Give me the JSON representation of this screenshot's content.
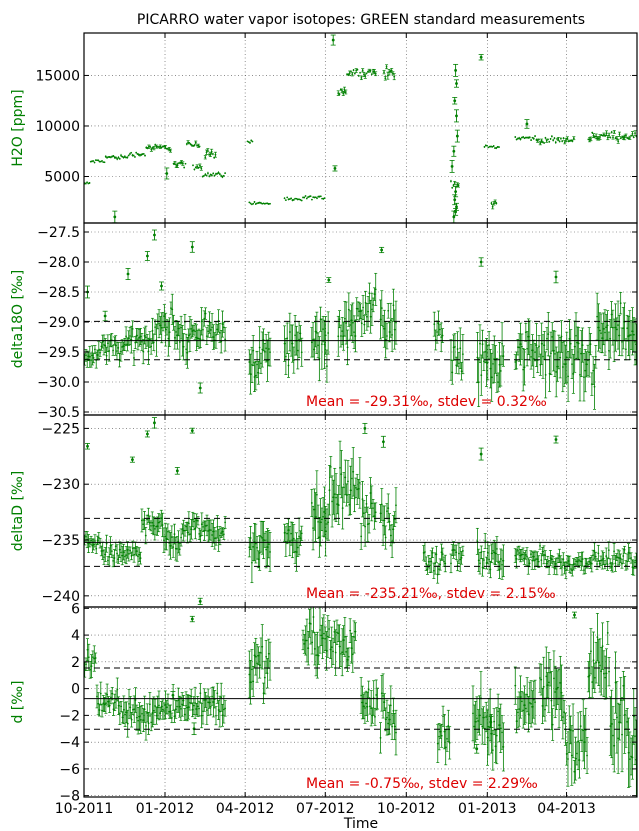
{
  "chart_data": {
    "title": "PICARRO water vapor isotopes: GREEN standard measurements",
    "xlabel": "Time",
    "x_ticks": [
      "10-2011",
      "01-2012",
      "04-2012",
      "07-2012",
      "10-2012",
      "01-2013",
      "04-2013"
    ],
    "x_range": [
      "2011-10-01",
      "2013-06-20"
    ],
    "series_color": "#008000",
    "annotation_color": "#dd0000",
    "grid": true,
    "panels": [
      {
        "type": "scatter",
        "ylabel": "H2O [ppm]",
        "ylim": [
          400,
          19200
        ],
        "yticks": [
          5000,
          10000,
          15000
        ],
        "segments": [
          {
            "x0": "2011-10-01",
            "x1": "2011-10-08",
            "y": 4300,
            "sd": 150
          },
          {
            "x0": "2011-10-08",
            "x1": "2011-10-25",
            "y": 6500,
            "sd": 150
          },
          {
            "x0": "2011-10-25",
            "x1": "2011-11-20",
            "y": 6900,
            "sd": 200
          },
          {
            "x0": "2011-11-20",
            "x1": "2011-12-10",
            "y": 7200,
            "sd": 200
          },
          {
            "x0": "2011-12-10",
            "x1": "2012-01-08",
            "y": 7850,
            "sd": 250
          },
          {
            "x0": "2012-01-10",
            "x1": "2012-01-25",
            "y": 6200,
            "sd": 300
          },
          {
            "x0": "2012-01-25",
            "x1": "2012-02-10",
            "y": 8100,
            "sd": 250
          },
          {
            "x0": "2012-02-01",
            "x1": "2012-02-12",
            "y": 6000,
            "sd": 300
          },
          {
            "x0": "2012-02-12",
            "x1": "2012-03-10",
            "y": 5200,
            "sd": 200
          },
          {
            "x0": "2012-02-15",
            "x1": "2012-02-28",
            "y": 7200,
            "sd": 400
          },
          {
            "x0": "2012-04-03",
            "x1": "2012-04-10",
            "y": 8500,
            "sd": 150
          },
          {
            "x0": "2012-04-05",
            "x1": "2012-04-30",
            "y": 2350,
            "sd": 150
          },
          {
            "x0": "2012-05-15",
            "x1": "2012-06-05",
            "y": 2700,
            "sd": 150
          },
          {
            "x0": "2012-06-05",
            "x1": "2012-07-01",
            "y": 2900,
            "sd": 150
          },
          {
            "x0": "2012-07-15",
            "x1": "2012-07-25",
            "y": 13500,
            "sd": 400
          },
          {
            "x0": "2012-07-25",
            "x1": "2012-08-28",
            "y": 15300,
            "sd": 350
          },
          {
            "x0": "2012-09-05",
            "x1": "2012-09-18",
            "y": 15200,
            "sd": 500
          },
          {
            "x0": "2012-11-20",
            "x1": "2012-11-30",
            "y": 4300,
            "sd": 300
          },
          {
            "x0": "2012-12-28",
            "x1": "2013-01-15",
            "y": 7900,
            "sd": 150
          },
          {
            "x0": "2013-01-05",
            "x1": "2013-01-12",
            "y": 2400,
            "sd": 300
          },
          {
            "x0": "2013-02-01",
            "x1": "2013-02-25",
            "y": 8800,
            "sd": 200
          },
          {
            "x0": "2013-02-25",
            "x1": "2013-04-10",
            "y": 8600,
            "sd": 250
          },
          {
            "x0": "2013-04-25",
            "x1": "2013-06-20",
            "y": 9000,
            "sd": 350
          }
        ],
        "points": [
          {
            "x": "2011-11-05",
            "y": 1000
          },
          {
            "x": "2012-01-03",
            "y": 5300
          },
          {
            "x": "2012-07-10",
            "y": 18500
          },
          {
            "x": "2012-07-12",
            "y": 5800
          },
          {
            "x": "2012-11-26",
            "y": 15500
          },
          {
            "x": "2012-11-27",
            "y": 14200
          },
          {
            "x": "2012-11-25",
            "y": 12500
          },
          {
            "x": "2012-11-27",
            "y": 11000
          },
          {
            "x": "2012-11-28",
            "y": 9000
          },
          {
            "x": "2012-11-24",
            "y": 7500
          },
          {
            "x": "2012-11-22",
            "y": 6000
          },
          {
            "x": "2012-11-26",
            "y": 3500
          },
          {
            "x": "2012-11-25",
            "y": 2700
          },
          {
            "x": "2012-11-27",
            "y": 2000
          },
          {
            "x": "2012-11-26",
            "y": 1500
          },
          {
            "x": "2012-11-24",
            "y": 1000
          },
          {
            "x": "2012-12-25",
            "y": 16800
          },
          {
            "x": "2013-02-15",
            "y": 10200
          }
        ]
      },
      {
        "type": "scatter",
        "ylabel": "delta18O [‰]",
        "ylim": [
          -30.55,
          -27.35
        ],
        "yticks": [
          -27.5,
          -28.0,
          -28.5,
          -29.0,
          -29.5,
          -30.0,
          -30.5
        ],
        "tick_labels": [
          "−27.5",
          "−28.0",
          "−28.5",
          "−29.0",
          "−29.5",
          "−30.0",
          "−30.5"
        ],
        "mean": -29.31,
        "stdev": 0.32,
        "annotation": "Mean = -29.31‰, stdev = 0.32‰",
        "segments": [
          {
            "x0": "2011-10-01",
            "x1": "2011-10-20",
            "y": -29.55,
            "sd": 0.15
          },
          {
            "x0": "2011-10-20",
            "x1": "2011-11-20",
            "y": -29.45,
            "sd": 0.15
          },
          {
            "x0": "2011-11-20",
            "x1": "2011-12-20",
            "y": -29.3,
            "sd": 0.2
          },
          {
            "x0": "2011-12-20",
            "x1": "2012-01-10",
            "y": -29.0,
            "sd": 0.25
          },
          {
            "x0": "2012-01-10",
            "x1": "2012-01-30",
            "y": -29.25,
            "sd": 0.25
          },
          {
            "x0": "2012-01-30",
            "x1": "2012-03-10",
            "y": -29.15,
            "sd": 0.2
          },
          {
            "x0": "2012-04-05",
            "x1": "2012-04-30",
            "y": -29.6,
            "sd": 0.3
          },
          {
            "x0": "2012-05-15",
            "x1": "2012-06-05",
            "y": -29.4,
            "sd": 0.3
          },
          {
            "x0": "2012-06-15",
            "x1": "2012-07-05",
            "y": -29.25,
            "sd": 0.35
          },
          {
            "x0": "2012-07-15",
            "x1": "2012-08-05",
            "y": -29.1,
            "sd": 0.3
          },
          {
            "x0": "2012-08-05",
            "x1": "2012-08-28",
            "y": -28.75,
            "sd": 0.25
          },
          {
            "x0": "2012-09-01",
            "x1": "2012-09-20",
            "y": -29.0,
            "sd": 0.3
          },
          {
            "x0": "2012-11-01",
            "x1": "2012-11-12",
            "y": -29.2,
            "sd": 0.2
          },
          {
            "x0": "2012-11-20",
            "x1": "2012-12-05",
            "y": -29.55,
            "sd": 0.3
          },
          {
            "x0": "2012-12-20",
            "x1": "2013-01-20",
            "y": -29.7,
            "sd": 0.35
          },
          {
            "x0": "2013-02-01",
            "x1": "2013-02-25",
            "y": -29.5,
            "sd": 0.3
          },
          {
            "x0": "2013-02-25",
            "x1": "2013-03-30",
            "y": -29.55,
            "sd": 0.35
          },
          {
            "x0": "2013-03-30",
            "x1": "2013-05-05",
            "y": -29.7,
            "sd": 0.4
          },
          {
            "x0": "2013-05-05",
            "x1": "2013-06-20",
            "y": -29.2,
            "sd": 0.35
          }
        ],
        "points": [
          {
            "x": "2011-10-05",
            "y": -28.5
          },
          {
            "x": "2011-10-25",
            "y": -28.9
          },
          {
            "x": "2011-11-20",
            "y": -28.2
          },
          {
            "x": "2011-12-12",
            "y": -27.9
          },
          {
            "x": "2011-12-20",
            "y": -27.55
          },
          {
            "x": "2011-12-28",
            "y": -28.4
          },
          {
            "x": "2012-02-01",
            "y": -27.75
          },
          {
            "x": "2012-02-10",
            "y": -30.1
          },
          {
            "x": "2012-07-05",
            "y": -28.3
          },
          {
            "x": "2012-12-25",
            "y": -28.0
          },
          {
            "x": "2013-03-20",
            "y": -28.25
          },
          {
            "x": "2012-09-03",
            "y": -27.8
          }
        ]
      },
      {
        "type": "scatter",
        "ylabel": "deltaD [‰]",
        "ylim": [
          -241,
          -223.8
        ],
        "yticks": [
          -225,
          -230,
          -235,
          -240
        ],
        "tick_labels": [
          "−225",
          "−230",
          "−235",
          "−240"
        ],
        "mean": -235.21,
        "stdev": 2.15,
        "annotation": "Mean = -235.21‰, stdev = 2.15‰",
        "segments": [
          {
            "x0": "2011-10-01",
            "x1": "2011-10-20",
            "y": -235.2,
            "sd": 0.7
          },
          {
            "x0": "2011-10-20",
            "x1": "2011-12-05",
            "y": -236.3,
            "sd": 0.7
          },
          {
            "x0": "2011-12-05",
            "x1": "2011-12-30",
            "y": -233.3,
            "sd": 1.0
          },
          {
            "x0": "2011-12-30",
            "x1": "2012-01-20",
            "y": -235.0,
            "sd": 1.0
          },
          {
            "x0": "2012-01-20",
            "x1": "2012-03-10",
            "y": -234.0,
            "sd": 0.9
          },
          {
            "x0": "2012-04-05",
            "x1": "2012-04-30",
            "y": -235.5,
            "sd": 1.5
          },
          {
            "x0": "2012-05-15",
            "x1": "2012-06-05",
            "y": -234.5,
            "sd": 1.5
          },
          {
            "x0": "2012-06-15",
            "x1": "2012-07-05",
            "y": -233.0,
            "sd": 2.0
          },
          {
            "x0": "2012-07-05",
            "x1": "2012-08-10",
            "y": -230.5,
            "sd": 2.0
          },
          {
            "x0": "2012-08-10",
            "x1": "2012-08-28",
            "y": -232.5,
            "sd": 1.5
          },
          {
            "x0": "2012-09-01",
            "x1": "2012-09-20",
            "y": -233.5,
            "sd": 1.5
          },
          {
            "x0": "2012-10-20",
            "x1": "2012-11-15",
            "y": -237.0,
            "sd": 0.8
          },
          {
            "x0": "2012-11-20",
            "x1": "2012-12-05",
            "y": -236.5,
            "sd": 1.0
          },
          {
            "x0": "2012-12-20",
            "x1": "2013-01-20",
            "y": -236.8,
            "sd": 1.2
          },
          {
            "x0": "2013-02-01",
            "x1": "2013-03-10",
            "y": -236.5,
            "sd": 0.7
          },
          {
            "x0": "2013-03-10",
            "x1": "2013-04-20",
            "y": -237.0,
            "sd": 0.7
          },
          {
            "x0": "2013-04-20",
            "x1": "2013-06-20",
            "y": -236.8,
            "sd": 0.7
          }
        ],
        "points": [
          {
            "x": "2011-10-05",
            "y": -226.6
          },
          {
            "x": "2011-11-25",
            "y": -227.8
          },
          {
            "x": "2011-12-12",
            "y": -225.5
          },
          {
            "x": "2011-12-20",
            "y": -224.5
          },
          {
            "x": "2012-01-15",
            "y": -228.8
          },
          {
            "x": "2012-02-01",
            "y": -225.2
          },
          {
            "x": "2012-08-15",
            "y": -225.0
          },
          {
            "x": "2012-09-05",
            "y": -226.2
          },
          {
            "x": "2012-12-25",
            "y": -227.3
          },
          {
            "x": "2013-03-20",
            "y": -226.0
          },
          {
            "x": "2012-02-10",
            "y": -240.5
          }
        ]
      },
      {
        "type": "scatter",
        "ylabel": "d [‰]",
        "ylim": [
          -8.1,
          6.1
        ],
        "yticks": [
          6,
          4,
          2,
          0,
          -2,
          -4,
          -6,
          -8
        ],
        "tick_labels": [
          "6",
          "4",
          "2",
          "0",
          "−2",
          "−4",
          "−6",
          "−8"
        ],
        "mean": -0.75,
        "stdev": 2.29,
        "annotation": "Mean = -0.75‰, stdev = 2.29‰",
        "segments": [
          {
            "x0": "2011-10-01",
            "x1": "2011-10-15",
            "y": 1.8,
            "sd": 0.9
          },
          {
            "x0": "2011-10-15",
            "x1": "2011-11-10",
            "y": -0.8,
            "sd": 0.8
          },
          {
            "x0": "2011-11-10",
            "x1": "2011-12-20",
            "y": -1.8,
            "sd": 0.9
          },
          {
            "x0": "2011-12-20",
            "x1": "2012-01-30",
            "y": -1.3,
            "sd": 0.9
          },
          {
            "x0": "2012-01-30",
            "x1": "2012-03-10",
            "y": -1.1,
            "sd": 1.0
          },
          {
            "x0": "2012-04-05",
            "x1": "2012-04-30",
            "y": 1.5,
            "sd": 1.5
          },
          {
            "x0": "2012-06-05",
            "x1": "2012-07-15",
            "y": 3.5,
            "sd": 1.5
          },
          {
            "x0": "2012-07-15",
            "x1": "2012-08-05",
            "y": 3.2,
            "sd": 1.5
          },
          {
            "x0": "2012-08-10",
            "x1": "2012-08-30",
            "y": -1.2,
            "sd": 1.2
          },
          {
            "x0": "2012-09-01",
            "x1": "2012-09-20",
            "y": -2.0,
            "sd": 1.5
          },
          {
            "x0": "2012-11-05",
            "x1": "2012-11-20",
            "y": -3.3,
            "sd": 1.2
          },
          {
            "x0": "2012-12-15",
            "x1": "2013-01-20",
            "y": -3.0,
            "sd": 1.8
          },
          {
            "x0": "2013-02-01",
            "x1": "2013-02-25",
            "y": -1.0,
            "sd": 1.5
          },
          {
            "x0": "2013-03-01",
            "x1": "2013-03-30",
            "y": 0.0,
            "sd": 2.0
          },
          {
            "x0": "2013-03-30",
            "x1": "2013-04-25",
            "y": -4.5,
            "sd": 2.0
          },
          {
            "x0": "2013-04-25",
            "x1": "2013-05-20",
            "y": 2.0,
            "sd": 2.0
          },
          {
            "x0": "2013-05-20",
            "x1": "2013-06-20",
            "y": -3.0,
            "sd": 2.5
          }
        ],
        "points": [
          {
            "x": "2012-02-01",
            "y": 5.2
          },
          {
            "x": "2012-02-03",
            "y": -3.0
          },
          {
            "x": "2012-01-10",
            "y": -0.5
          },
          {
            "x": "2012-12-20",
            "y": -4.5
          },
          {
            "x": "2013-01-05",
            "y": -2.5
          },
          {
            "x": "2013-04-10",
            "y": 5.5
          }
        ]
      }
    ]
  }
}
